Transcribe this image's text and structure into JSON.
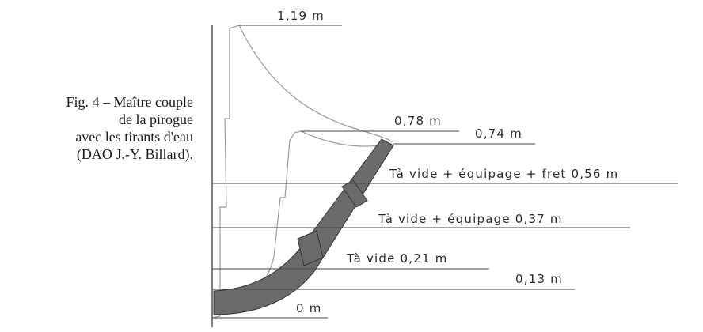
{
  "caption": {
    "line1": "Fig. 4 – Maître couple",
    "line2": "de la pirogue",
    "line3": "avec les tirants d'eau",
    "line4": "(DAO J.-Y. Billard)."
  },
  "diagram": {
    "labels": {
      "h_119": "1,19 m",
      "h_078": "0,78 m",
      "h_074": "0,74 m",
      "t_full": "Tà vide + équipage + fret 0,56 m",
      "t_crew": "Tà vide + équipage 0,37 m",
      "t_empty": "Tà vide 0,21 m",
      "h_013": "0,13 m",
      "h_0": "0 m"
    },
    "colors": {
      "hull_fill": "#6b6b6b",
      "hull_stroke": "#333333",
      "line": "#444444",
      "profile": "#9a9a9a"
    }
  }
}
